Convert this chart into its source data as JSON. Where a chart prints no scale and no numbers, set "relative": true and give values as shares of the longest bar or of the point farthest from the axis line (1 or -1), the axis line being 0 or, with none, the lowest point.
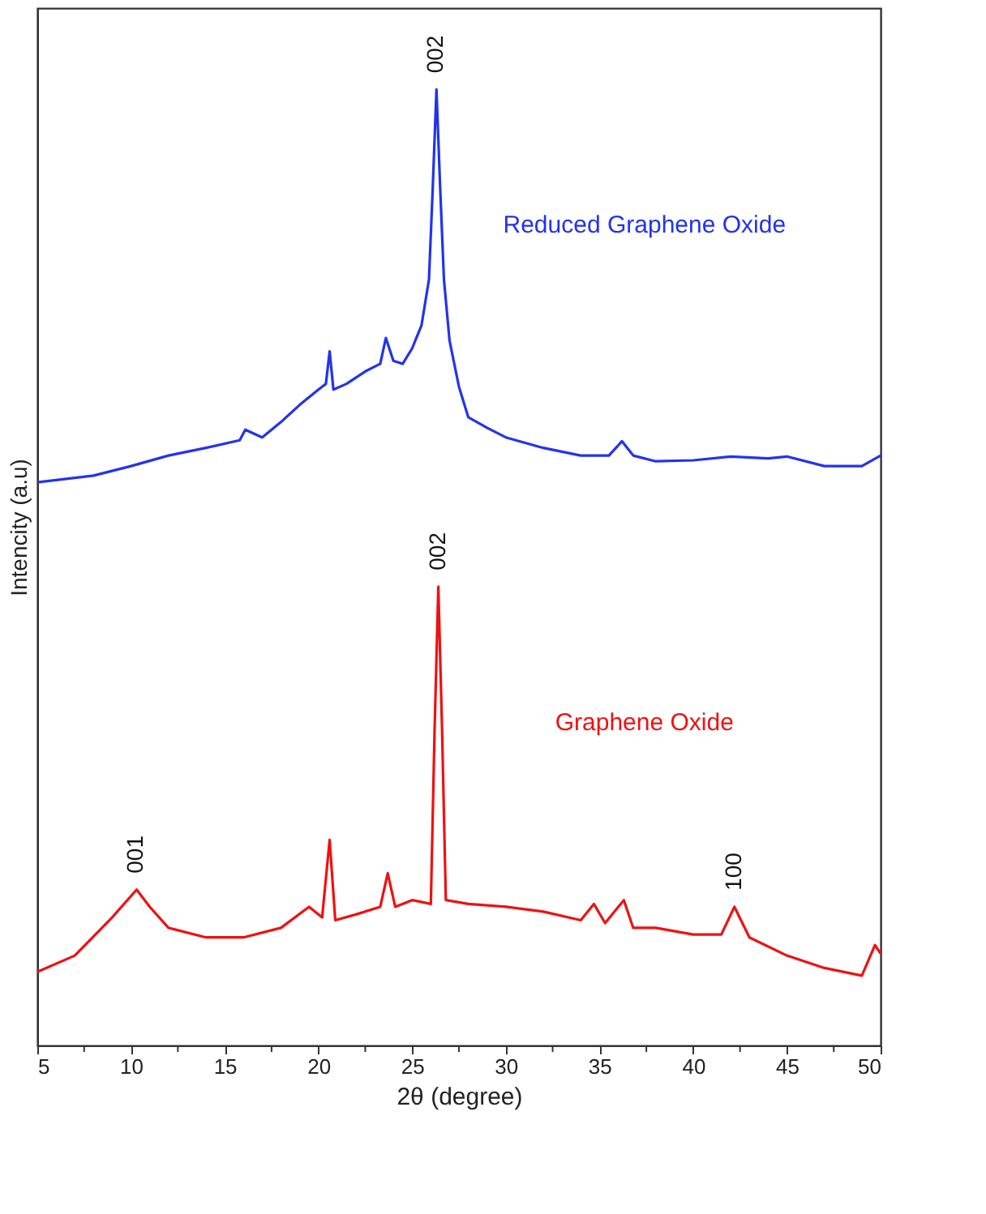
{
  "chart_data": {
    "type": "line",
    "relative": true,
    "xlabel": "2θ (degree)",
    "ylabel": "Intencity (a.u)",
    "xlim": [
      5,
      50
    ],
    "xticks": [
      5,
      {
        "value": 7.5,
        "label": null
      },
      10,
      {
        "value": 12.5,
        "label": null
      },
      15,
      {
        "value": 17.5,
        "label": null
      },
      20,
      {
        "value": 22.5,
        "label": null
      },
      25,
      {
        "value": 27.5,
        "label": null
      },
      30,
      {
        "value": 32.5,
        "label": null
      },
      35,
      {
        "value": 37.5,
        "label": null
      },
      40,
      {
        "value": 42.5,
        "label": null
      },
      45,
      {
        "value": 47.5,
        "label": null
      },
      50
    ],
    "tick_labels": "x",
    "grid": false,
    "marker": "none",
    "line_style": "solid",
    "series": [
      {
        "name": "Reduced Graphene Oxide",
        "color": "#2233ee",
        "x": [
          5,
          8,
          10,
          12,
          14,
          15.8,
          16.1,
          17,
          18,
          19,
          20,
          20.4,
          20.6,
          20.8,
          21.5,
          22.5,
          23.3,
          23.6,
          24,
          24.5,
          25,
          25.5,
          25.9,
          26.1,
          26.3,
          26.5,
          26.7,
          27,
          27.5,
          28,
          29,
          30,
          32,
          34,
          35.5,
          36.2,
          36.8,
          38,
          40,
          42,
          44,
          45,
          47,
          49,
          50
        ],
        "values": [
          0.589,
          0.596,
          0.606,
          0.617,
          0.625,
          0.633,
          0.644,
          0.636,
          0.652,
          0.67,
          0.686,
          0.692,
          0.726,
          0.686,
          0.692,
          0.705,
          0.713,
          0.74,
          0.716,
          0.713,
          0.729,
          0.753,
          0.801,
          0.896,
          1,
          0.896,
          0.801,
          0.737,
          0.689,
          0.657,
          0.646,
          0.636,
          0.625,
          0.617,
          0.617,
          0.632,
          0.617,
          0.611,
          0.612,
          0.616,
          0.614,
          0.616,
          0.606,
          0.606,
          0.617
        ]
      },
      {
        "name": "Graphene Oxide",
        "color": "#ee1111",
        "x": [
          5,
          7,
          9,
          10.3,
          11,
          12,
          14,
          16,
          18,
          19.5,
          20.2,
          20.6,
          20.9,
          22,
          23.3,
          23.7,
          24.1,
          25,
          26,
          26.2,
          26.4,
          26.6,
          26.8,
          28,
          30,
          32,
          34,
          34.7,
          35.3,
          36.3,
          36.8,
          38,
          40,
          41.5,
          42.2,
          43,
          45,
          47,
          49,
          49.7,
          50
        ],
        "values": [
          0.077,
          0.094,
          0.134,
          0.163,
          0.145,
          0.123,
          0.113,
          0.113,
          0.123,
          0.145,
          0.134,
          0.215,
          0.131,
          0.137,
          0.145,
          0.18,
          0.145,
          0.152,
          0.148,
          0.33,
          0.48,
          0.33,
          0.152,
          0.148,
          0.145,
          0.14,
          0.131,
          0.148,
          0.128,
          0.152,
          0.123,
          0.123,
          0.116,
          0.116,
          0.145,
          0.113,
          0.094,
          0.081,
          0.073,
          0.105,
          0.096
        ]
      }
    ],
    "annotations": [
      {
        "text": "002",
        "x": 26.3,
        "y": 1
      },
      {
        "text": "001",
        "x": 10.3,
        "y": 0.163
      },
      {
        "text": "002",
        "x": 26.4,
        "y": 0.48
      },
      {
        "text": "100",
        "x": 42.2,
        "y": 0.145
      }
    ]
  }
}
